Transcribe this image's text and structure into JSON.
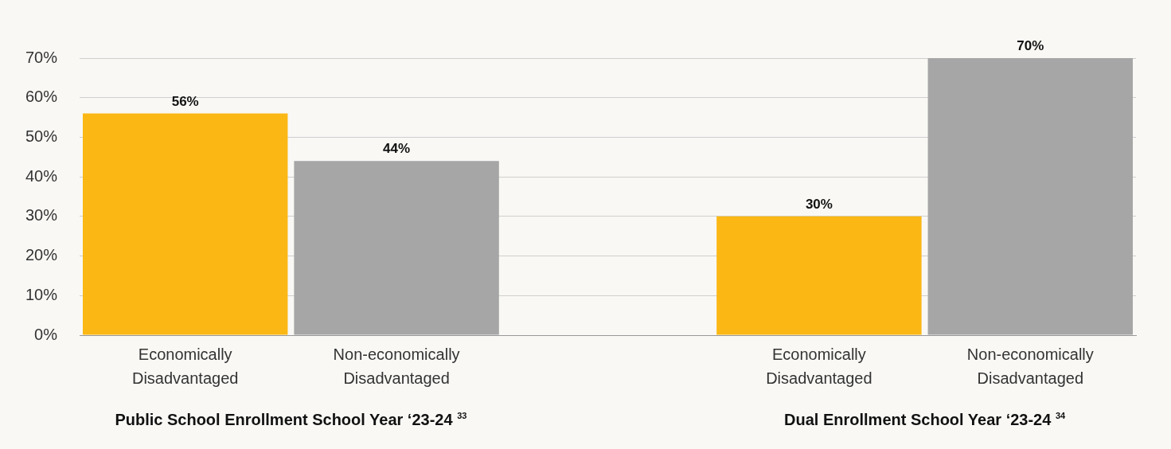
{
  "chart_data": {
    "type": "bar",
    "categories": [
      "Economically Disadvantaged",
      "Non-economically Disadvantaged",
      null,
      "Economically Disadvantaged",
      "Non-economically Disadvantaged"
    ],
    "values": [
      56,
      44,
      null,
      30,
      70
    ],
    "colors": [
      "#fbb713",
      "#a6a6a6",
      "#a6a6a6",
      "#fbb713",
      "#a6a6a6"
    ],
    "value_labels": [
      "56%",
      "44%",
      null,
      "30%",
      "70%"
    ],
    "ylim": [
      0,
      70
    ],
    "yticks": [
      {
        "value": 0,
        "label": "0%"
      },
      {
        "value": 10,
        "label": "10%"
      },
      {
        "value": 20,
        "label": "20%"
      },
      {
        "value": 30,
        "label": "30%"
      },
      {
        "value": 40,
        "label": "40%"
      },
      {
        "value": 50,
        "label": "50%"
      },
      {
        "value": 60,
        "label": "60%"
      },
      {
        "value": 70,
        "label": "70%"
      }
    ],
    "grid": "y",
    "legend": false,
    "annotations": [
      "Public School Enrollment School Year ‘23-24 $^{33}$",
      "Dual Enrollment School Year ‘23-24 $^{34}$"
    ]
  }
}
